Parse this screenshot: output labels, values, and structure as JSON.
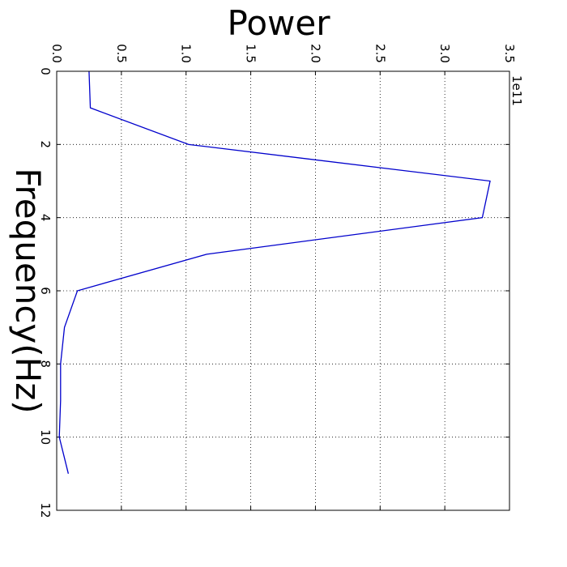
{
  "chart_data": {
    "type": "line",
    "title": "",
    "xlabel": "Power",
    "ylabel": "Frequency(Hz)",
    "orientation": "rotated-90-clockwise",
    "x_offset_text": "1e11",
    "x_scale_factor": 100000000000.0,
    "xlim": [
      0,
      3.5
    ],
    "ylim": [
      0,
      12
    ],
    "x_ticks": [
      "0.0",
      "0.5",
      "1.0",
      "1.5",
      "2.0",
      "2.5",
      "3.0",
      "3.5"
    ],
    "x_tick_values": [
      0,
      0.5,
      1.0,
      1.5,
      2.0,
      2.5,
      3.0,
      3.5
    ],
    "y_ticks": [
      "0",
      "2",
      "4",
      "6",
      "8",
      "10",
      "12"
    ],
    "y_tick_values": [
      0,
      2,
      4,
      6,
      8,
      10,
      12
    ],
    "grid": true,
    "line_color": "#0000cc",
    "series": [
      {
        "frequency": [
          0,
          1,
          2,
          3,
          4,
          5,
          6,
          7,
          8,
          9,
          10,
          11
        ],
        "power": [
          0.25,
          0.26,
          1.02,
          3.35,
          3.29,
          1.16,
          0.16,
          0.06,
          0.03,
          0.03,
          0.02,
          0.09
        ]
      }
    ]
  }
}
